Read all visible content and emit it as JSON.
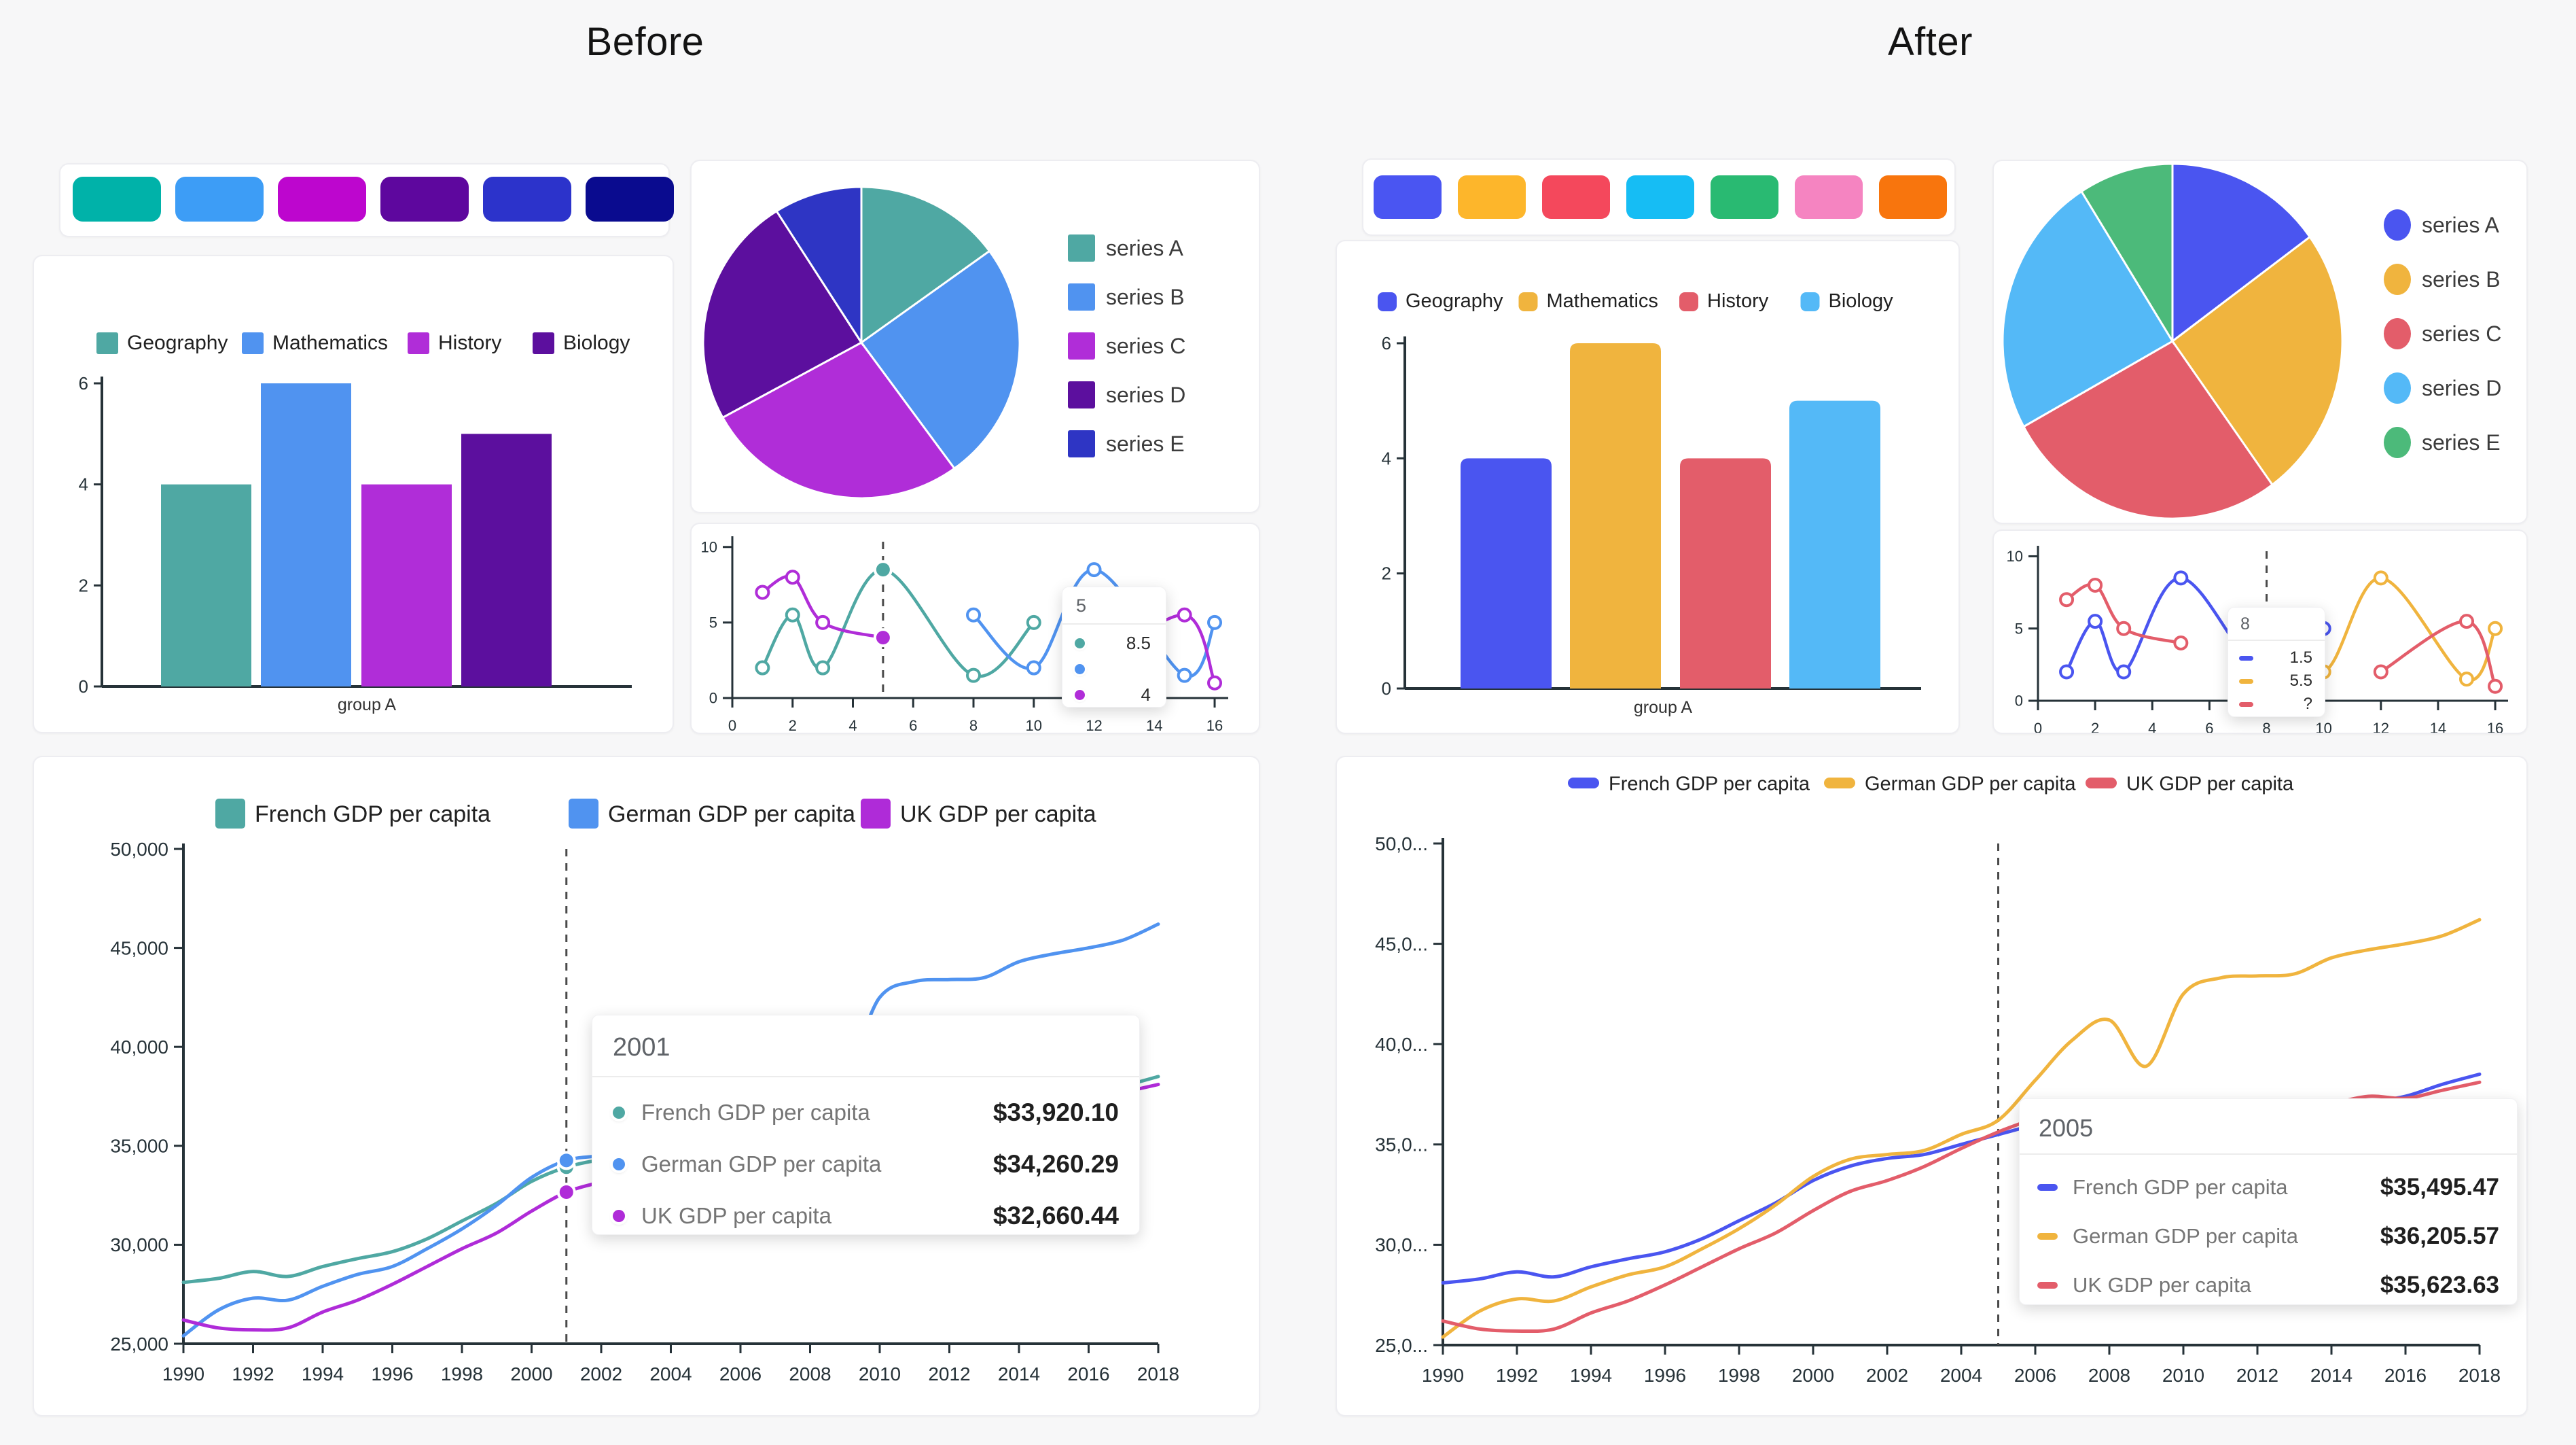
{
  "page": {
    "background": "#f7f7f8",
    "columns": {
      "before": {
        "title": "Before"
      },
      "after": {
        "title": "After"
      }
    }
  },
  "palettes": {
    "before": [
      "#00B2A9",
      "#3D9DF6",
      "#BD06CE",
      "#5E079E",
      "#2C33CB",
      "#0A0B8F"
    ],
    "after": [
      "#4A55F2",
      "#FDB62B",
      "#F4485C",
      "#16BDF4",
      "#29BA72",
      "#F584C1",
      "#F8750D"
    ]
  },
  "chart_data": {
    "gdp_years": [
      1990,
      1991,
      1992,
      1993,
      1994,
      1995,
      1996,
      1997,
      1998,
      1999,
      2000,
      2001,
      2002,
      2003,
      2004,
      2005,
      2006,
      2007,
      2008,
      2009,
      2010,
      2011,
      2012,
      2013,
      2014,
      2015,
      2016,
      2017,
      2018
    ],
    "gdp_values": {
      "french": [
        28100,
        28300,
        28650,
        28400,
        28900,
        29300,
        29650,
        30300,
        31200,
        32100,
        33200,
        33920,
        34300,
        34500,
        35000,
        35495,
        36000,
        36600,
        36500,
        35500,
        36000,
        36500,
        36400,
        36600,
        36800,
        37100,
        37400,
        38000,
        38500
      ],
      "german": [
        25400,
        26700,
        27300,
        27200,
        27900,
        28500,
        28900,
        29800,
        30800,
        32000,
        33400,
        34260,
        34500,
        34700,
        35500,
        36206,
        38200,
        40200,
        41200,
        38900,
        42500,
        43300,
        43400,
        43500,
        44300,
        44700,
        45000,
        45400,
        46200
      ],
      "uk": [
        26200,
        25800,
        25700,
        25800,
        26600,
        27200,
        28000,
        28900,
        29800,
        30600,
        31700,
        32660,
        33200,
        33900,
        34800,
        35624,
        36300,
        36900,
        36700,
        35200,
        35600,
        35900,
        36200,
        36500,
        37000,
        37400,
        37300,
        37700,
        38100
      ]
    },
    "before_bar": {
      "type": "bar",
      "categories": [
        "group A"
      ],
      "series": [
        {
          "name": "Geography",
          "value": 4
        },
        {
          "name": "Mathematics",
          "value": 6
        },
        {
          "name": "History",
          "value": 4
        },
        {
          "name": "Biology",
          "value": 5
        }
      ],
      "colors": [
        "#4FA8A3",
        "#5093F0",
        "#B02DD8",
        "#5C0F9E"
      ],
      "ylim": [
        0,
        6
      ],
      "yticks": [
        0,
        2,
        4,
        6
      ],
      "xlabel": "group A",
      "rounded": false
    },
    "after_bar": {
      "type": "bar",
      "categories": [
        "group A"
      ],
      "series": [
        {
          "name": "Geography",
          "value": 4
        },
        {
          "name": "Mathematics",
          "value": 6
        },
        {
          "name": "History",
          "value": 4
        },
        {
          "name": "Biology",
          "value": 5
        }
      ],
      "colors": [
        "#4A55F0",
        "#F0B43E",
        "#E35D6A",
        "#54B9F7"
      ],
      "ylim": [
        0,
        6
      ],
      "yticks": [
        0,
        2,
        4,
        6
      ],
      "xlabel": "group A",
      "rounded": true
    },
    "before_pie": {
      "type": "pie",
      "labels": [
        "series A",
        "series B",
        "series C",
        "series D",
        "series E"
      ],
      "values": [
        15,
        25,
        27,
        24,
        9
      ],
      "colors": [
        "#4FA8A3",
        "#5093F0",
        "#B02DD8",
        "#5C0F9E",
        "#2E35C4"
      ],
      "legend_marker": "square"
    },
    "after_pie": {
      "type": "pie",
      "labels": [
        "series A",
        "series B",
        "series C",
        "series D",
        "series E"
      ],
      "values": [
        15,
        25,
        27,
        24,
        9
      ],
      "colors": [
        "#4A55F0",
        "#F0B43E",
        "#E35D6A",
        "#54B9F7",
        "#4CBA7A"
      ],
      "legend_marker": "circle"
    },
    "before_spark": {
      "type": "line",
      "xlim": [
        0,
        16.45
      ],
      "ylim": [
        0,
        10.35
      ],
      "xticks": [
        0,
        2,
        4,
        6,
        8,
        10,
        12,
        14,
        16
      ],
      "yticks": [
        0,
        5,
        10
      ],
      "dashed_x": 5,
      "colors": [
        "#4FA8A3",
        "#5093F0",
        "#B02DD8"
      ],
      "series": [
        {
          "color": 0,
          "segments": [
            [
              [
                1,
                2
              ],
              [
                2,
                5.5
              ],
              [
                3,
                2
              ],
              [
                5,
                8.5
              ],
              [
                8,
                1.5
              ],
              [
                10,
                5
              ]
            ]
          ]
        },
        {
          "color": 1,
          "segments": [
            [
              [
                8,
                5.5
              ],
              [
                10,
                2
              ],
              [
                12,
                8.5
              ],
              [
                15,
                1.5
              ],
              [
                16,
                5
              ]
            ]
          ]
        },
        {
          "color": 2,
          "segments": [
            [
              [
                1,
                7
              ],
              [
                2,
                8
              ],
              [
                3,
                5
              ],
              [
                5,
                4
              ]
            ],
            [
              [
                12,
                2
              ],
              [
                15,
                5.5
              ],
              [
                16,
                1
              ]
            ]
          ]
        }
      ],
      "highlights": [
        {
          "x": 5,
          "y": 8.5,
          "color": 0
        },
        {
          "x": 5,
          "y": 4,
          "color": 2
        }
      ],
      "tooltip": {
        "title": "5",
        "marker": "circle",
        "rows": [
          {
            "value": "8.5"
          },
          {
            "value": ""
          },
          {
            "value": "4"
          }
        ]
      }
    },
    "after_spark": {
      "type": "line",
      "xlim": [
        0,
        16.45
      ],
      "ylim": [
        0,
        10.35
      ],
      "xticks": [
        0,
        2,
        4,
        6,
        8,
        10,
        12,
        14,
        16
      ],
      "yticks": [
        0,
        5,
        10
      ],
      "dashed_x": 8,
      "colors": [
        "#4A55F0",
        "#F0B43E",
        "#E35D6A"
      ],
      "series": [
        {
          "color": 0,
          "segments": [
            [
              [
                1,
                2
              ],
              [
                2,
                5.5
              ],
              [
                3,
                2
              ],
              [
                5,
                8.5
              ],
              [
                8,
                1.5
              ],
              [
                10,
                5
              ]
            ]
          ]
        },
        {
          "color": 1,
          "segments": [
            [
              [
                8,
                5.5
              ],
              [
                10,
                2
              ],
              [
                12,
                8.5
              ],
              [
                15,
                1.5
              ],
              [
                16,
                5
              ]
            ]
          ]
        },
        {
          "color": 2,
          "segments": [
            [
              [
                1,
                7
              ],
              [
                2,
                8
              ],
              [
                3,
                5
              ],
              [
                5,
                4
              ]
            ],
            [
              [
                12,
                2
              ],
              [
                15,
                5.5
              ],
              [
                16,
                1
              ]
            ]
          ]
        }
      ],
      "highlights": [],
      "tooltip": {
        "title": "8",
        "marker": "dash",
        "rows": [
          {
            "value": "1.5"
          },
          {
            "value": "5.5"
          },
          {
            "value": "?"
          }
        ]
      }
    },
    "before_gdp": {
      "type": "line",
      "xlim": [
        1990,
        2018
      ],
      "ylim": [
        25000,
        50000
      ],
      "ytick_labels": [
        "25,000",
        "30,000",
        "35,000",
        "40,000",
        "45,000",
        "50,000"
      ],
      "series_labels": [
        "French GDP per capita",
        "German GDP per capita",
        "UK GDP per capita"
      ],
      "colors": [
        "#4FA8A3",
        "#5093F0",
        "#AF2BD8"
      ],
      "dashed_x": 2001,
      "dots_at": 2001,
      "tooltip": {
        "title": "2001",
        "marker": "circle",
        "rows": [
          {
            "label": "French GDP per capita",
            "value": "$33,920.10"
          },
          {
            "label": "German GDP per capita",
            "value": "$34,260.29"
          },
          {
            "label": "UK GDP per capita",
            "value": "$32,660.44"
          }
        ]
      }
    },
    "after_gdp": {
      "type": "line",
      "xlim": [
        1990,
        2018
      ],
      "ylim": [
        25000,
        50000
      ],
      "ytick_labels": [
        "25,0...",
        "30,0...",
        "35,0...",
        "40,0...",
        "45,0...",
        "50,0..."
      ],
      "series_labels": [
        "French GDP per capita",
        "German GDP per capita",
        "UK GDP per capita"
      ],
      "colors": [
        "#4A55F0",
        "#F0B43E",
        "#E35D6A"
      ],
      "dashed_x": 2005,
      "dots_at": null,
      "tooltip": {
        "title": "2005",
        "marker": "pill",
        "rows": [
          {
            "label": "French GDP per capita",
            "value": "$35,495.47"
          },
          {
            "label": "German GDP per capita",
            "value": "$36,205.57"
          },
          {
            "label": "UK GDP per capita",
            "value": "$35,623.63"
          }
        ]
      }
    }
  }
}
